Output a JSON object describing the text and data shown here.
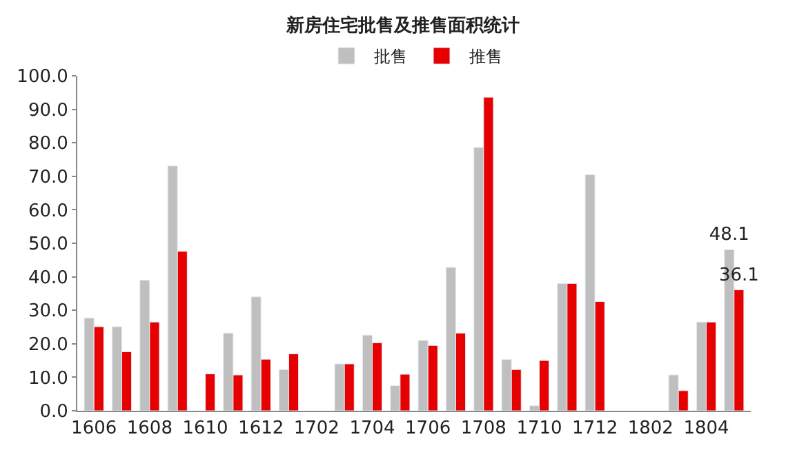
{
  "chart_data": {
    "type": "bar",
    "title": "新房住宅批售及推售面积统计",
    "categories": [
      "1606",
      null,
      "1608",
      null,
      "1610",
      null,
      "1612",
      null,
      "1702",
      null,
      "1704",
      null,
      "1706",
      null,
      "1708",
      null,
      "1710",
      null,
      "1712",
      null,
      "1802",
      null,
      "1804",
      null
    ],
    "series": [
      {
        "name": "批售",
        "color": "#bfbfbf",
        "values": [
          27.7,
          25.1,
          39.0,
          73.1,
          null,
          23.2,
          34.0,
          12.3,
          null,
          14.0,
          22.6,
          7.5,
          21.0,
          42.8,
          78.6,
          15.3,
          1.5,
          38.0,
          70.5,
          null,
          null,
          10.7,
          26.5,
          48.1
        ],
        "value_labels": [
          null,
          null,
          null,
          null,
          null,
          null,
          null,
          null,
          null,
          null,
          null,
          null,
          null,
          null,
          null,
          null,
          null,
          null,
          null,
          null,
          null,
          null,
          null,
          "48.1"
        ]
      },
      {
        "name": "推售",
        "color": "#e60000",
        "values": [
          25.1,
          17.6,
          26.5,
          47.6,
          11.0,
          10.7,
          15.4,
          17.0,
          null,
          14.0,
          20.3,
          10.9,
          19.5,
          23.2,
          93.6,
          12.3,
          15.0,
          38.0,
          32.6,
          null,
          null,
          6.0,
          26.5,
          36.1
        ],
        "value_labels": [
          null,
          null,
          null,
          null,
          null,
          null,
          null,
          null,
          null,
          null,
          null,
          null,
          null,
          null,
          null,
          null,
          null,
          null,
          null,
          null,
          null,
          null,
          null,
          "36.1"
        ]
      }
    ],
    "ylim": [
      0,
      100
    ],
    "yticks": [
      {
        "value": 0,
        "label": "0.0"
      },
      {
        "value": 10,
        "label": "10.0"
      },
      {
        "value": 20,
        "label": "20.0"
      },
      {
        "value": 30,
        "label": "30.0"
      },
      {
        "value": 40,
        "label": "40.0"
      },
      {
        "value": 50,
        "label": "50.0"
      },
      {
        "value": 60,
        "label": "60.0"
      },
      {
        "value": 70,
        "label": "70.0"
      },
      {
        "value": 80,
        "label": "80.0"
      },
      {
        "value": 90,
        "label": "90.0"
      },
      {
        "value": 100,
        "label": "100.0"
      }
    ],
    "legend": "top"
  }
}
